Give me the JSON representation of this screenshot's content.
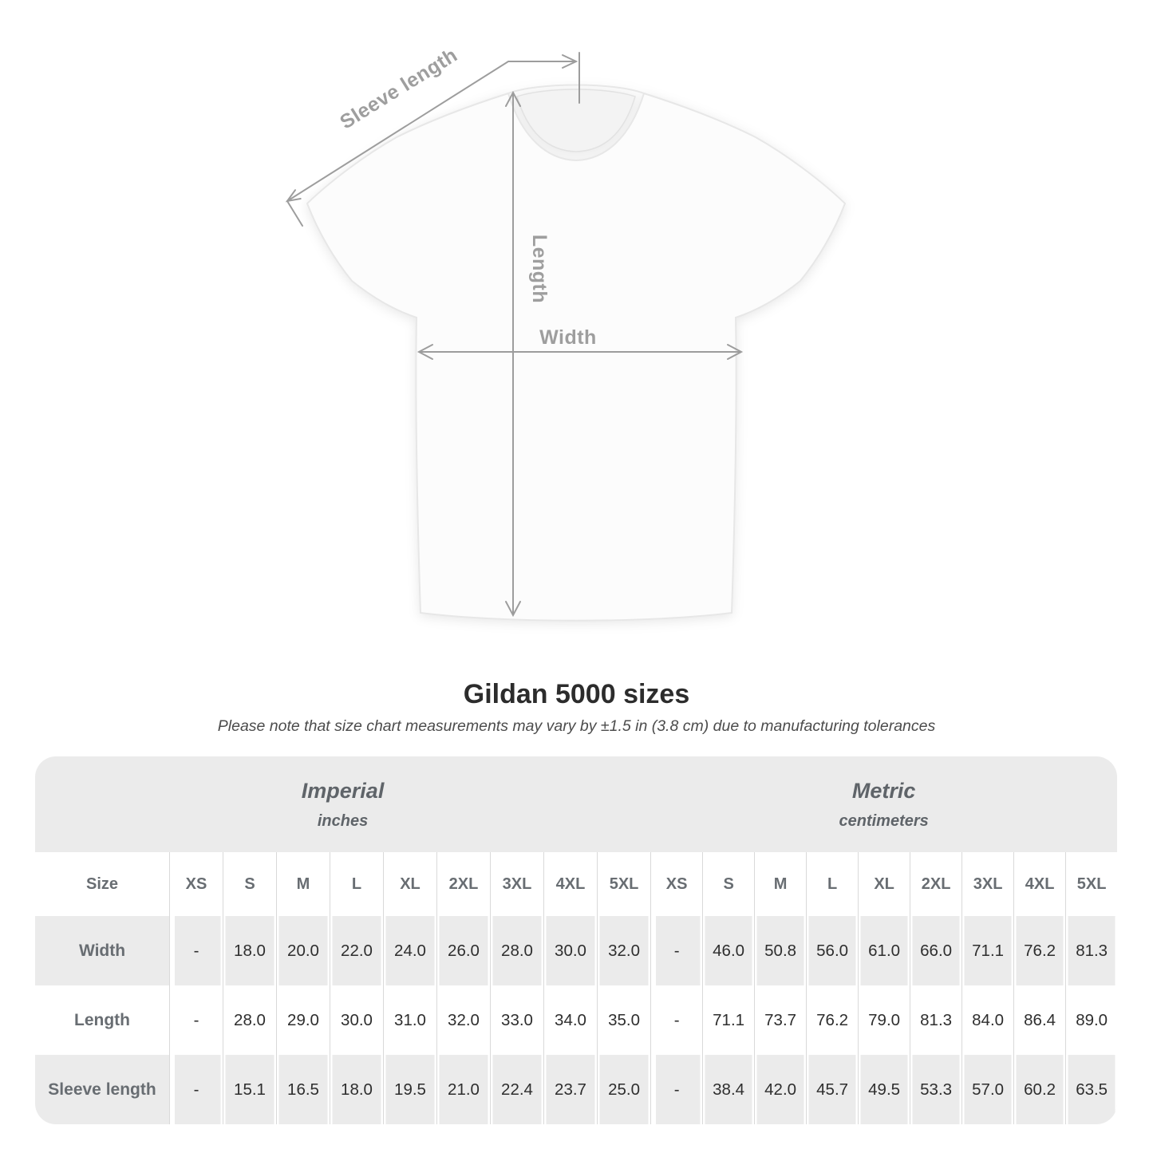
{
  "title": "Gildan 5000 sizes",
  "subtitle": "Please note that size chart measurements may vary by ±1.5 in (3.8 cm) due to manufacturing tolerances",
  "diagram": {
    "labels": {
      "sleeve_length": "Sleeve length",
      "length": "Length",
      "width": "Width"
    }
  },
  "chart_data": {
    "type": "table",
    "title": "Gildan 5000 sizes",
    "size_header": "Size",
    "sections": [
      {
        "name": "Imperial",
        "unit": "inches"
      },
      {
        "name": "Metric",
        "unit": "centimeters"
      }
    ],
    "sizes": [
      "XS",
      "S",
      "M",
      "L",
      "XL",
      "2XL",
      "3XL",
      "4XL",
      "5XL"
    ],
    "rows": [
      {
        "label": "Width",
        "imperial": [
          "-",
          "18.0",
          "20.0",
          "22.0",
          "24.0",
          "26.0",
          "28.0",
          "30.0",
          "32.0"
        ],
        "metric": [
          "-",
          "46.0",
          "50.8",
          "56.0",
          "61.0",
          "66.0",
          "71.1",
          "76.2",
          "81.3"
        ]
      },
      {
        "label": "Length",
        "imperial": [
          "-",
          "28.0",
          "29.0",
          "30.0",
          "31.0",
          "32.0",
          "33.0",
          "34.0",
          "35.0"
        ],
        "metric": [
          "-",
          "71.1",
          "73.7",
          "76.2",
          "79.0",
          "81.3",
          "84.0",
          "86.4",
          "89.0"
        ]
      },
      {
        "label": "Sleeve length",
        "imperial": [
          "-",
          "15.1",
          "16.5",
          "18.0",
          "19.5",
          "21.0",
          "22.4",
          "23.7",
          "25.0"
        ],
        "metric": [
          "-",
          "38.4",
          "42.0",
          "45.7",
          "49.5",
          "53.3",
          "57.0",
          "60.2",
          "63.5"
        ]
      }
    ]
  },
  "colors": {
    "row_gray": "#ebebeb",
    "separator": "#d9d9d9",
    "header_text": "#686d72",
    "value_text": "#2e2e2e",
    "diagram_gray": "#9e9e9e"
  }
}
